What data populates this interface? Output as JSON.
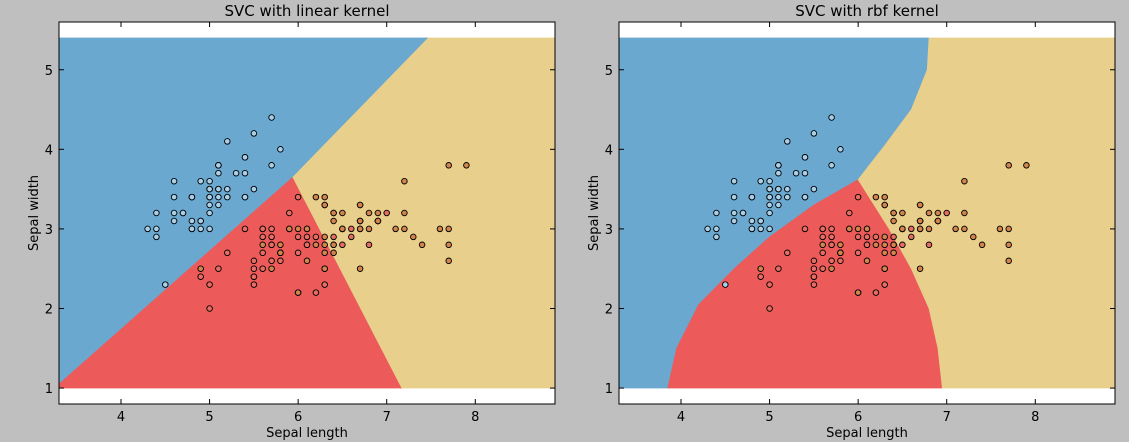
{
  "colors": {
    "figure_bg": "#bfbfbf",
    "axes_bg": "#ffffff",
    "class_0_region": "#6ba8cf",
    "class_1_region": "#ec5a5a",
    "class_2_region": "#e8cf8c",
    "class_0_point": "#a9d0e8",
    "class_1_point": "#e56d62",
    "class_2_point": "#d1844c",
    "point_edge": "#000000"
  },
  "chart_data": [
    {
      "type": "scatter",
      "title": "SVC with linear kernel",
      "xlabel": "Sepal length",
      "ylabel": "Sepal width",
      "xlim": [
        3.3,
        8.9
      ],
      "ylim": [
        0.8,
        5.6
      ],
      "xticks": [
        4,
        5,
        6,
        7,
        8
      ],
      "yticks": [
        1,
        2,
        3,
        4,
        5
      ],
      "region_extent": {
        "x": [
          3.3,
          8.9
        ],
        "y": [
          1.0,
          5.4
        ]
      },
      "regions": [
        {
          "class": 0,
          "polygon": [
            [
              3.3,
              1.0
            ],
            [
              3.3,
              5.4
            ],
            [
              7.47,
              5.4
            ],
            [
              5.94,
              3.65
            ],
            [
              3.3,
              1.05
            ]
          ]
        },
        {
          "class": 1,
          "polygon": [
            [
              3.3,
              1.05
            ],
            [
              5.94,
              3.65
            ],
            [
              7.17,
              1.0
            ],
            [
              3.3,
              1.0
            ]
          ]
        },
        {
          "class": 2,
          "polygon": [
            [
              5.94,
              3.65
            ],
            [
              7.47,
              5.4
            ],
            [
              8.9,
              5.4
            ],
            [
              8.9,
              1.0
            ],
            [
              7.17,
              1.0
            ]
          ]
        }
      ],
      "grid": false
    },
    {
      "type": "scatter",
      "title": "SVC with rbf kernel",
      "xlabel": "Sepal length",
      "ylabel": "Sepal width",
      "xlim": [
        3.3,
        8.9
      ],
      "ylim": [
        0.8,
        5.6
      ],
      "xticks": [
        4,
        5,
        6,
        7,
        8
      ],
      "yticks": [
        1,
        2,
        3,
        4,
        5
      ],
      "region_extent": {
        "x": [
          3.3,
          8.9
        ],
        "y": [
          1.0,
          5.4
        ]
      },
      "regions": [
        {
          "class": 0,
          "polygon": [
            [
              3.3,
              1.0
            ],
            [
              3.3,
              5.4
            ],
            [
              6.8,
              5.4
            ],
            [
              6.78,
              5.0
            ],
            [
              6.6,
              4.5
            ],
            [
              6.3,
              4.05
            ],
            [
              6.0,
              3.62
            ],
            [
              5.5,
              3.3
            ],
            [
              5.0,
              2.9
            ],
            [
              4.6,
              2.5
            ],
            [
              4.2,
              2.05
            ],
            [
              3.95,
              1.5
            ],
            [
              3.85,
              1.0
            ]
          ]
        },
        {
          "class": 1,
          "polygon": [
            [
              3.85,
              1.0
            ],
            [
              3.95,
              1.5
            ],
            [
              4.2,
              2.05
            ],
            [
              4.6,
              2.5
            ],
            [
              5.0,
              2.9
            ],
            [
              5.5,
              3.3
            ],
            [
              6.0,
              3.62
            ],
            [
              6.35,
              3.0
            ],
            [
              6.6,
              2.5
            ],
            [
              6.8,
              2.0
            ],
            [
              6.9,
              1.5
            ],
            [
              6.95,
              1.0
            ]
          ]
        },
        {
          "class": 2,
          "polygon": [
            [
              6.0,
              3.62
            ],
            [
              6.3,
              4.05
            ],
            [
              6.6,
              4.5
            ],
            [
              6.78,
              5.0
            ],
            [
              6.8,
              5.4
            ],
            [
              8.9,
              5.4
            ],
            [
              8.9,
              1.0
            ],
            [
              6.95,
              1.0
            ],
            [
              6.9,
              1.5
            ],
            [
              6.8,
              2.0
            ],
            [
              6.6,
              2.5
            ],
            [
              6.35,
              3.0
            ]
          ]
        }
      ],
      "grid": false
    }
  ],
  "points": {
    "class_0": [
      [
        5.1,
        3.5
      ],
      [
        4.9,
        3.0
      ],
      [
        4.7,
        3.2
      ],
      [
        4.6,
        3.1
      ],
      [
        5.0,
        3.6
      ],
      [
        5.4,
        3.9
      ],
      [
        4.6,
        3.4
      ],
      [
        5.0,
        3.4
      ],
      [
        4.4,
        2.9
      ],
      [
        4.9,
        3.1
      ],
      [
        5.4,
        3.7
      ],
      [
        4.8,
        3.4
      ],
      [
        4.8,
        3.0
      ],
      [
        4.3,
        3.0
      ],
      [
        5.8,
        4.0
      ],
      [
        5.7,
        4.4
      ],
      [
        5.4,
        3.9
      ],
      [
        5.1,
        3.5
      ],
      [
        5.7,
        3.8
      ],
      [
        5.1,
        3.8
      ],
      [
        5.4,
        3.4
      ],
      [
        5.1,
        3.7
      ],
      [
        4.6,
        3.6
      ],
      [
        5.1,
        3.3
      ],
      [
        4.8,
        3.4
      ],
      [
        5.0,
        3.0
      ],
      [
        5.0,
        3.4
      ],
      [
        5.2,
        3.5
      ],
      [
        5.2,
        3.4
      ],
      [
        4.7,
        3.2
      ],
      [
        4.8,
        3.1
      ],
      [
        5.4,
        3.4
      ],
      [
        5.2,
        4.1
      ],
      [
        5.5,
        4.2
      ],
      [
        4.9,
        3.1
      ],
      [
        5.0,
        3.2
      ],
      [
        5.5,
        3.5
      ],
      [
        4.9,
        3.6
      ],
      [
        4.4,
        3.0
      ],
      [
        5.1,
        3.4
      ],
      [
        5.0,
        3.5
      ],
      [
        4.5,
        2.3
      ],
      [
        4.4,
        3.2
      ],
      [
        5.0,
        3.5
      ],
      [
        5.1,
        3.8
      ],
      [
        4.8,
        3.0
      ],
      [
        5.1,
        3.8
      ],
      [
        4.6,
        3.2
      ],
      [
        5.3,
        3.7
      ],
      [
        5.0,
        3.3
      ]
    ],
    "class_1": [
      [
        7.0,
        3.2
      ],
      [
        6.4,
        3.2
      ],
      [
        6.9,
        3.1
      ],
      [
        5.5,
        2.3
      ],
      [
        6.5,
        2.8
      ],
      [
        5.7,
        2.8
      ],
      [
        6.3,
        3.3
      ],
      [
        4.9,
        2.4
      ],
      [
        6.6,
        2.9
      ],
      [
        5.2,
        2.7
      ],
      [
        5.0,
        2.0
      ],
      [
        5.9,
        3.0
      ],
      [
        6.0,
        2.2
      ],
      [
        6.1,
        2.9
      ],
      [
        5.6,
        2.9
      ],
      [
        6.7,
        3.1
      ],
      [
        5.6,
        3.0
      ],
      [
        5.8,
        2.7
      ],
      [
        6.2,
        2.2
      ],
      [
        5.6,
        2.5
      ],
      [
        5.9,
        3.2
      ],
      [
        6.1,
        2.8
      ],
      [
        6.3,
        2.5
      ],
      [
        6.1,
        2.8
      ],
      [
        6.4,
        2.9
      ],
      [
        6.6,
        3.0
      ],
      [
        6.8,
        2.8
      ],
      [
        6.7,
        3.0
      ],
      [
        6.0,
        2.9
      ],
      [
        5.7,
        2.6
      ],
      [
        5.5,
        2.4
      ],
      [
        5.5,
        2.4
      ],
      [
        5.8,
        2.7
      ],
      [
        6.0,
        2.7
      ],
      [
        5.4,
        3.0
      ],
      [
        6.0,
        3.4
      ],
      [
        6.7,
        3.1
      ],
      [
        6.3,
        2.3
      ],
      [
        5.6,
        3.0
      ],
      [
        5.5,
        2.5
      ],
      [
        5.5,
        2.6
      ],
      [
        6.1,
        3.0
      ],
      [
        5.8,
        2.6
      ],
      [
        5.0,
        2.3
      ],
      [
        5.6,
        2.7
      ],
      [
        5.7,
        3.0
      ],
      [
        5.7,
        2.9
      ],
      [
        6.2,
        2.9
      ],
      [
        5.1,
        2.5
      ],
      [
        5.7,
        2.8
      ]
    ],
    "class_2": [
      [
        6.3,
        3.3
      ],
      [
        5.8,
        2.7
      ],
      [
        7.1,
        3.0
      ],
      [
        6.3,
        2.9
      ],
      [
        6.5,
        3.0
      ],
      [
        7.6,
        3.0
      ],
      [
        4.9,
        2.5
      ],
      [
        7.3,
        2.9
      ],
      [
        6.7,
        2.5
      ],
      [
        7.2,
        3.6
      ],
      [
        6.5,
        3.2
      ],
      [
        6.4,
        2.7
      ],
      [
        6.8,
        3.0
      ],
      [
        5.7,
        2.5
      ],
      [
        5.8,
        2.8
      ],
      [
        6.4,
        3.2
      ],
      [
        6.5,
        3.0
      ],
      [
        7.7,
        3.8
      ],
      [
        7.7,
        2.6
      ],
      [
        6.0,
        2.2
      ],
      [
        6.9,
        3.2
      ],
      [
        5.6,
        2.8
      ],
      [
        7.7,
        2.8
      ],
      [
        6.3,
        2.7
      ],
      [
        6.7,
        3.3
      ],
      [
        7.2,
        3.2
      ],
      [
        6.2,
        2.8
      ],
      [
        6.1,
        3.0
      ],
      [
        6.4,
        2.8
      ],
      [
        7.2,
        3.0
      ],
      [
        7.4,
        2.8
      ],
      [
        7.9,
        3.8
      ],
      [
        6.4,
        2.8
      ],
      [
        6.3,
        2.8
      ],
      [
        6.1,
        2.6
      ],
      [
        7.7,
        3.0
      ],
      [
        6.3,
        3.4
      ],
      [
        6.4,
        3.1
      ],
      [
        6.0,
        3.0
      ],
      [
        6.9,
        3.1
      ],
      [
        6.7,
        3.1
      ],
      [
        6.9,
        3.1
      ],
      [
        5.8,
        2.7
      ],
      [
        6.8,
        3.2
      ],
      [
        6.7,
        3.3
      ],
      [
        6.7,
        3.0
      ],
      [
        6.3,
        2.5
      ],
      [
        6.5,
        3.0
      ],
      [
        6.2,
        3.4
      ],
      [
        5.9,
        3.0
      ]
    ]
  }
}
